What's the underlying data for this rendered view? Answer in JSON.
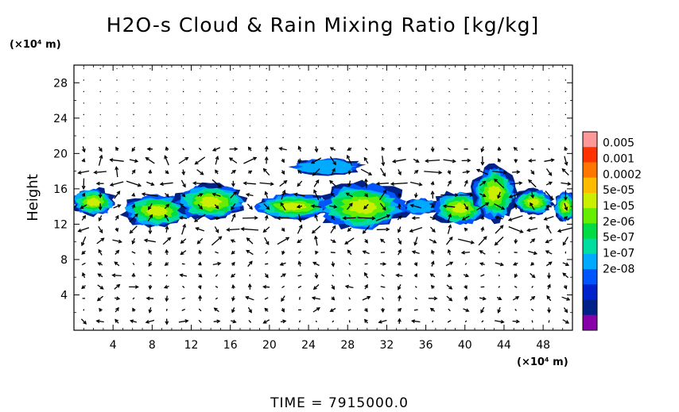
{
  "chart_data": {
    "type": "heatmap",
    "title": "H2O-s Cloud & Rain Mixing Ratio [kg/kg]",
    "ylabel": "Height",
    "xunit": "(×10⁴ m)",
    "yunit": "(×10⁴ m)",
    "xlim": [
      0,
      51
    ],
    "ylim": [
      0,
      30
    ],
    "xticks": [
      4,
      8,
      12,
      16,
      20,
      24,
      28,
      32,
      36,
      40,
      44,
      48
    ],
    "yticks": [
      4,
      8,
      12,
      16,
      20,
      24,
      28
    ],
    "colorbar": {
      "labels": [
        "0.005",
        "0.001",
        "0.0002",
        "5e-05",
        "1e-05",
        "2e-06",
        "5e-07",
        "1e-07",
        "2e-08"
      ],
      "colors": [
        "#ff9999",
        "#ff3300",
        "#ff7700",
        "#ffbb00",
        "#ccee00",
        "#66ee00",
        "#00dd44",
        "#00dda0",
        "#00aaff",
        "#0055ff",
        "#0022cc",
        "#002288",
        "#8800aa"
      ]
    },
    "cloud_blobs": [
      {
        "x": 2,
        "y": 14.5,
        "rx": 2.2,
        "ry": 1.5,
        "level": 7
      },
      {
        "x": 8.5,
        "y": 13.5,
        "rx": 3.5,
        "ry": 1.8,
        "level": 7
      },
      {
        "x": 14,
        "y": 14.5,
        "rx": 3.5,
        "ry": 2.0,
        "level": 7
      },
      {
        "x": 22.5,
        "y": 14,
        "rx": 4.0,
        "ry": 1.4,
        "level": 7
      },
      {
        "x": 26,
        "y": 18.5,
        "rx": 3.5,
        "ry": 0.9,
        "level": 9
      },
      {
        "x": 29.5,
        "y": 14,
        "rx": 4.5,
        "ry": 2.6,
        "level": 7
      },
      {
        "x": 35.5,
        "y": 14,
        "rx": 1.8,
        "ry": 0.9,
        "level": 10
      },
      {
        "x": 39.5,
        "y": 13.8,
        "rx": 2.8,
        "ry": 1.9,
        "level": 7
      },
      {
        "x": 43,
        "y": 15.5,
        "rx": 2.2,
        "ry": 3.0,
        "level": 7
      },
      {
        "x": 47,
        "y": 14.5,
        "rx": 2.0,
        "ry": 1.4,
        "level": 8
      },
      {
        "x": 50.3,
        "y": 14,
        "rx": 1.2,
        "ry": 1.6,
        "level": 8
      }
    ]
  },
  "time_label": "TIME = 7915000.0"
}
